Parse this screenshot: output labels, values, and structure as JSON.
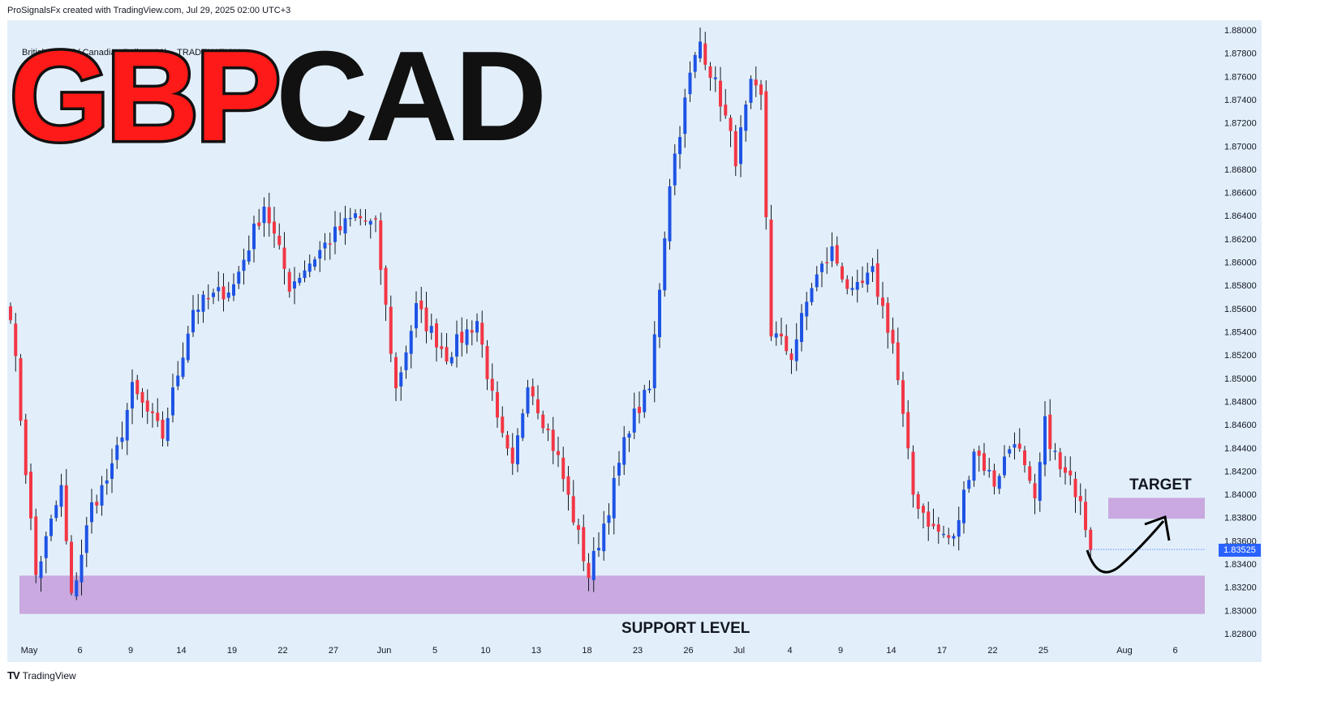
{
  "header": {
    "credit": "ProSignalsFx created with TradingView.com, Jul 29, 2025 02:00 UTC+3"
  },
  "symbol_line": "British Pound / Canadian Dollar · 10h · TRADENATION",
  "headline": {
    "part1": "GBP",
    "part2": "CAD"
  },
  "labels": {
    "target": "TARGET",
    "support": "SUPPORT LEVEL"
  },
  "last_price": "1.83525",
  "footer": {
    "brand": "TradingView"
  },
  "colors": {
    "up": "#1e53e5",
    "down": "#f23645",
    "zone": "#c9a9e0",
    "badge": "#2962ff",
    "panel": "#e2effa"
  },
  "chart_data": {
    "type": "candlestick",
    "title": "GBPCAD",
    "subtitle": "British Pound / Canadian Dollar · 10h · TRADENATION",
    "timeframe": "10h",
    "ylim": [
      1.8275,
      1.881
    ],
    "y_ticks": [
      "1.88000",
      "1.87800",
      "1.87600",
      "1.87400",
      "1.87200",
      "1.87000",
      "1.86800",
      "1.86600",
      "1.86400",
      "1.86200",
      "1.86000",
      "1.85800",
      "1.85600",
      "1.85400",
      "1.85200",
      "1.85000",
      "1.84800",
      "1.84600",
      "1.84400",
      "1.84200",
      "1.84000",
      "1.83800",
      "1.83600",
      "1.83400",
      "1.83200",
      "1.83000",
      "1.82800"
    ],
    "x_ticks": [
      {
        "label": "May",
        "i": 4
      },
      {
        "label": "6",
        "i": 14
      },
      {
        "label": "9",
        "i": 24
      },
      {
        "label": "14",
        "i": 34
      },
      {
        "label": "19",
        "i": 44
      },
      {
        "label": "22",
        "i": 54
      },
      {
        "label": "27",
        "i": 64
      },
      {
        "label": "Jun",
        "i": 74
      },
      {
        "label": "5",
        "i": 84
      },
      {
        "label": "10",
        "i": 94
      },
      {
        "label": "13",
        "i": 104
      },
      {
        "label": "18",
        "i": 114
      },
      {
        "label": "23",
        "i": 124
      },
      {
        "label": "26",
        "i": 134
      },
      {
        "label": "Jul",
        "i": 144
      },
      {
        "label": "4",
        "i": 154
      },
      {
        "label": "9",
        "i": 164
      },
      {
        "label": "14",
        "i": 174
      },
      {
        "label": "17",
        "i": 184
      },
      {
        "label": "22",
        "i": 194
      },
      {
        "label": "25",
        "i": 204
      },
      {
        "label": "Aug",
        "i": 220
      },
      {
        "label": "6",
        "i": 230
      }
    ],
    "waypoints": [
      {
        "i": 0,
        "p": 1.8558
      },
      {
        "i": 5,
        "p": 1.833
      },
      {
        "i": 10,
        "p": 1.8405
      },
      {
        "i": 12,
        "p": 1.831
      },
      {
        "i": 16,
        "p": 1.839
      },
      {
        "i": 20,
        "p": 1.842
      },
      {
        "i": 24,
        "p": 1.849
      },
      {
        "i": 30,
        "p": 1.845
      },
      {
        "i": 36,
        "p": 1.856
      },
      {
        "i": 44,
        "p": 1.858
      },
      {
        "i": 50,
        "p": 1.865
      },
      {
        "i": 55,
        "p": 1.858
      },
      {
        "i": 63,
        "p": 1.862
      },
      {
        "i": 68,
        "p": 1.864
      },
      {
        "i": 72,
        "p": 1.863
      },
      {
        "i": 76,
        "p": 1.849
      },
      {
        "i": 80,
        "p": 1.856
      },
      {
        "i": 86,
        "p": 1.852
      },
      {
        "i": 92,
        "p": 1.855
      },
      {
        "i": 96,
        "p": 1.846
      },
      {
        "i": 99,
        "p": 1.842
      },
      {
        "i": 102,
        "p": 1.85
      },
      {
        "i": 108,
        "p": 1.843
      },
      {
        "i": 114,
        "p": 1.833
      },
      {
        "i": 118,
        "p": 1.839
      },
      {
        "i": 122,
        "p": 1.846
      },
      {
        "i": 126,
        "p": 1.849
      },
      {
        "i": 130,
        "p": 1.867
      },
      {
        "i": 134,
        "p": 1.876
      },
      {
        "i": 136,
        "p": 1.879
      },
      {
        "i": 140,
        "p": 1.874
      },
      {
        "i": 143,
        "p": 1.869
      },
      {
        "i": 146,
        "p": 1.875
      },
      {
        "i": 148,
        "p": 1.874
      },
      {
        "i": 150,
        "p": 1.854
      },
      {
        "i": 154,
        "p": 1.852
      },
      {
        "i": 158,
        "p": 1.858
      },
      {
        "i": 162,
        "p": 1.861
      },
      {
        "i": 166,
        "p": 1.857
      },
      {
        "i": 170,
        "p": 1.859
      },
      {
        "i": 174,
        "p": 1.853
      },
      {
        "i": 178,
        "p": 1.84
      },
      {
        "i": 182,
        "p": 1.837
      },
      {
        "i": 186,
        "p": 1.836
      },
      {
        "i": 190,
        "p": 1.844
      },
      {
        "i": 194,
        "p": 1.841
      },
      {
        "i": 198,
        "p": 1.845
      },
      {
        "i": 202,
        "p": 1.839
      },
      {
        "i": 204,
        "p": 1.846
      },
      {
        "i": 207,
        "p": 1.842
      },
      {
        "i": 211,
        "p": 1.84
      },
      {
        "i": 213,
        "p": 1.8352
      }
    ],
    "candle_count": 214,
    "annotations": [
      {
        "type": "zone",
        "label": "SUPPORT LEVEL",
        "from": 1.8297,
        "to": 1.833
      },
      {
        "type": "zone",
        "label": "TARGET",
        "from": 1.8379,
        "to": 1.8397
      },
      {
        "type": "arrow",
        "from_price": 1.833,
        "to_price": 1.8372
      }
    ],
    "last_price": 1.83525,
    "grid": false
  }
}
